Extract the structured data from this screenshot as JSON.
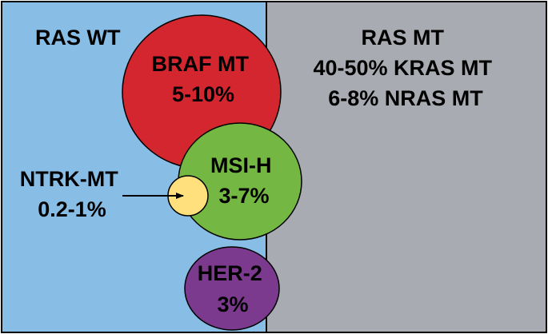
{
  "regions": {
    "wild_type": {
      "label": "RAS WT",
      "color": "#88bde6"
    },
    "mutant": {
      "lines": [
        "RAS MT",
        "40-50% KRAS MT",
        "6-8% NRAS MT"
      ],
      "color": "#a8abb1"
    }
  },
  "subgroups": {
    "braf": {
      "name": "BRAF MT",
      "pct": "5-10%",
      "color": "#d4262f"
    },
    "msi": {
      "name": "MSI-H",
      "pct": "3-7%",
      "color": "#74b843"
    },
    "ntrk": {
      "name": "NTRK-MT",
      "pct": "0.2-1%",
      "color": "#ffe07d"
    },
    "her2": {
      "name": "HER-2",
      "pct": "3%",
      "color": "#7b3a8e"
    }
  }
}
